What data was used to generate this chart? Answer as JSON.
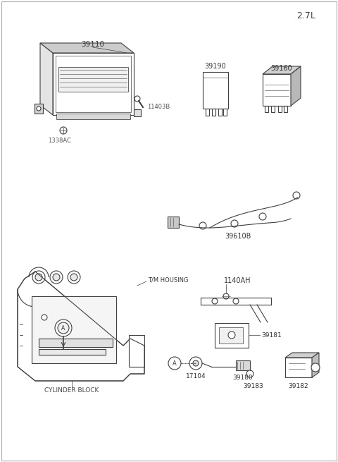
{
  "title": "2.7L",
  "background_color": "#ffffff",
  "line_color": "#404040",
  "fig_width": 4.8,
  "fig_height": 6.55,
  "labels": {
    "title": "2.7L",
    "ecm": "39110",
    "bolt1": "11403B",
    "bolt2": "1338AC",
    "relay1": "39190",
    "relay2": "39160",
    "harness": "39610B",
    "bracket": "1140AH",
    "sensor_bracket": "39181",
    "sensor_ring": "17104",
    "sensor": "39180",
    "sensor2": "39183",
    "sensor3": "39182",
    "tm_housing": "T/M HOUSING",
    "cyl_block": "CYLINDER BLOCK"
  }
}
